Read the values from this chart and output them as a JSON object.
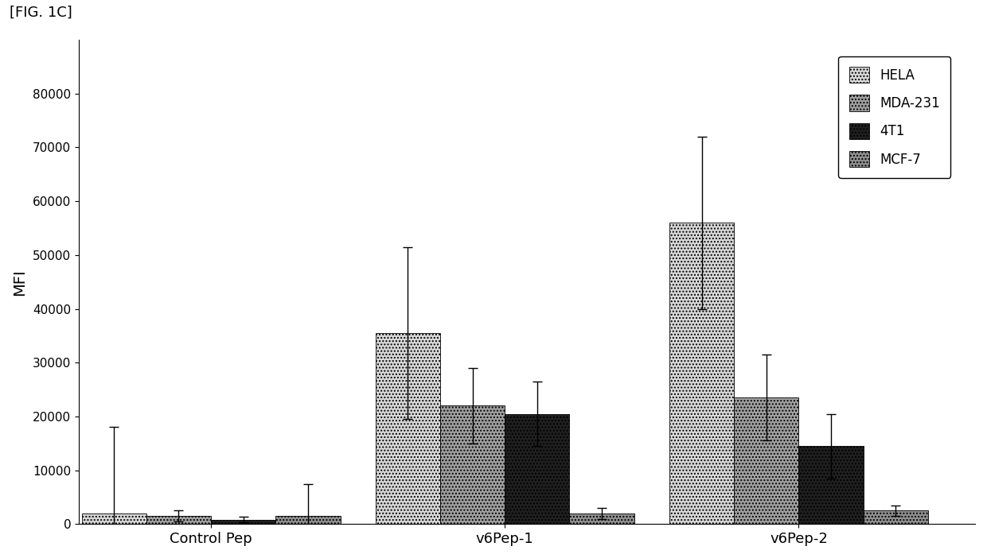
{
  "title": "[FIG. 1C]",
  "ylabel": "MFI",
  "categories": [
    "Control Pep",
    "v6Pep-1",
    "v6Pep-2"
  ],
  "series": {
    "HELA": [
      2000,
      35500,
      56000
    ],
    "MDA-231": [
      1500,
      22000,
      23500
    ],
    "4T1": [
      800,
      20500,
      14500
    ],
    "MCF-7": [
      1500,
      2000,
      2500
    ]
  },
  "errors": {
    "HELA": [
      16000,
      16000,
      16000
    ],
    "MDA-231": [
      1000,
      7000,
      8000
    ],
    "4T1": [
      500,
      6000,
      6000
    ],
    "MCF-7": [
      6000,
      1000,
      1000
    ]
  },
  "colors": {
    "HELA": "#d8d8d8",
    "MDA-231": "#a0a0a0",
    "4T1": "#202020",
    "MCF-7": "#909090"
  },
  "hatches": {
    "HELA": "....",
    "MDA-231": "....",
    "4T1": "....",
    "MCF-7": "...."
  },
  "ylim": [
    0,
    90000
  ],
  "yticks": [
    0,
    10000,
    20000,
    30000,
    40000,
    50000,
    60000,
    70000,
    80000
  ],
  "bar_width": 0.22,
  "group_positions": [
    0.35,
    1.35,
    2.35
  ],
  "figsize": [
    12.4,
    7.02
  ],
  "dpi": 100
}
